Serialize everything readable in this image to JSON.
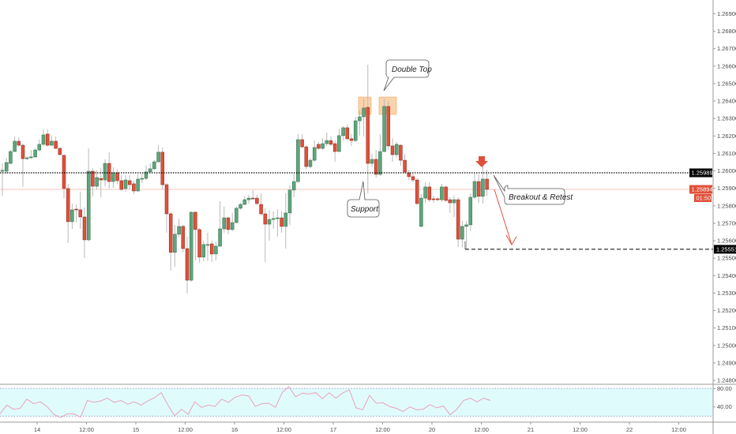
{
  "chart_data": {
    "type": "candlestick",
    "interval": "1h",
    "colors": {
      "up": "#5ea57c",
      "down": "#e0503a",
      "wick": "#b9b9b9",
      "rsi_line": "#e8a3bd",
      "rsi_band_fill": "#e0fbfc",
      "highlight": "#f8c48f"
    },
    "y_axis": {
      "range": [
        1.2478,
        1.27
      ],
      "ticks": [
        "1.26900",
        "1.26800",
        "1.26700",
        "1.26600",
        "1.26500",
        "1.26400",
        "1.26300",
        "1.26200",
        "1.26100",
        "1.26000",
        "1.25900",
        "1.25800",
        "1.25700",
        "1.25600",
        "1.25500",
        "1.25400",
        "1.25300",
        "1.25200",
        "1.25100",
        "1.25000",
        "1.24900",
        "1.24800"
      ]
    },
    "x_axis": {
      "ticks": [
        "14",
        "12:00",
        "15",
        "12:00",
        "16",
        "12:00",
        "17",
        "12:00",
        "20",
        "12:00",
        "21",
        "12:00",
        "22",
        "12:00"
      ]
    },
    "price_labels": {
      "resistance": {
        "value": "1.25989",
        "color": "#000000"
      },
      "last": {
        "value": "1.25894",
        "color": "#e0503a"
      },
      "countdown": "01:50",
      "target": {
        "value": "1.25551",
        "color": "#000000"
      }
    },
    "annotations": {
      "double_top": "Double Top",
      "support": "Support",
      "breakout": "Breakout & Retest"
    },
    "ohlc": [
      [
        1.25998,
        1.26043,
        1.25858,
        1.26003
      ],
      [
        1.25998,
        1.26075,
        1.25985,
        1.26048
      ],
      [
        1.26043,
        1.2612,
        1.26039,
        1.26111
      ],
      [
        1.26111,
        1.26197,
        1.26107,
        1.2617
      ],
      [
        1.2617,
        1.26193,
        1.26138,
        1.26147
      ],
      [
        1.26147,
        1.26156,
        1.25908,
        1.2607
      ],
      [
        1.2607,
        1.26084,
        1.26061,
        1.26075
      ],
      [
        1.26075,
        1.2612,
        1.2607,
        1.2608
      ],
      [
        1.2608,
        1.26129,
        1.26075,
        1.2612
      ],
      [
        1.2612,
        1.26179,
        1.26111,
        1.26152
      ],
      [
        1.26152,
        1.26238,
        1.26143,
        1.26206
      ],
      [
        1.26211,
        1.26238,
        1.26138,
        1.26147
      ],
      [
        1.26147,
        1.26202,
        1.26143,
        1.2617
      ],
      [
        1.2617,
        1.26197,
        1.26125,
        1.26129
      ],
      [
        1.26129,
        1.26134,
        1.26089,
        1.26093
      ],
      [
        1.26089,
        1.26093,
        1.25844,
        1.25899
      ],
      [
        1.25899,
        1.25926,
        1.25587,
        1.25709
      ],
      [
        1.25709,
        1.25813,
        1.25668,
        1.25777
      ],
      [
        1.25781,
        1.25808,
        1.25704,
        1.25779
      ],
      [
        1.25777,
        1.25881,
        1.25668,
        1.25736
      ],
      [
        1.25736,
        1.2579,
        1.25501,
        1.25605
      ],
      [
        1.25605,
        1.26129,
        1.25596,
        1.25998
      ],
      [
        1.25998,
        1.26016,
        1.25854,
        1.25912
      ],
      [
        1.25912,
        1.26003,
        1.25894,
        1.25962
      ],
      [
        1.25957,
        1.26016,
        1.25849,
        1.25948
      ],
      [
        1.25948,
        1.26066,
        1.25912,
        1.26043
      ],
      [
        1.26043,
        1.26107,
        1.25899,
        1.25939
      ],
      [
        1.25939,
        1.26021,
        1.25903,
        1.25989
      ],
      [
        1.25989,
        1.26007,
        1.25926,
        1.25944
      ],
      [
        1.25944,
        1.25976,
        1.25885,
        1.25894
      ],
      [
        1.25899,
        1.25976,
        1.25881,
        1.25948
      ],
      [
        1.25944,
        1.25976,
        1.25894,
        1.25921
      ],
      [
        1.25926,
        1.25944,
        1.25867,
        1.25885
      ],
      [
        1.25885,
        1.2598,
        1.25881,
        1.25953
      ],
      [
        1.25953,
        1.25985,
        1.2593,
        1.25957
      ],
      [
        1.25957,
        1.2603,
        1.25948,
        1.25994
      ],
      [
        1.25994,
        1.26043,
        1.25989,
        1.26012
      ],
      [
        1.26012,
        1.26061,
        1.26003,
        1.26052
      ],
      [
        1.26052,
        1.26147,
        1.26048,
        1.26107
      ],
      [
        1.26107,
        1.26134,
        1.25894,
        1.25921
      ],
      [
        1.25921,
        1.2593,
        1.25646,
        1.25754
      ],
      [
        1.25754,
        1.25763,
        1.25429,
        1.25533
      ],
      [
        1.25533,
        1.25691,
        1.25451,
        1.25637
      ],
      [
        1.25637,
        1.25727,
        1.25623,
        1.25682
      ],
      [
        1.25682,
        1.25691,
        1.25533,
        1.25555
      ],
      [
        1.25555,
        1.25623,
        1.25298,
        1.25374
      ],
      [
        1.25374,
        1.25768,
        1.25365,
        1.25763
      ],
      [
        1.25763,
        1.25768,
        1.25487,
        1.25664
      ],
      [
        1.25664,
        1.25673,
        1.25474,
        1.25506
      ],
      [
        1.25506,
        1.256,
        1.25483,
        1.25578
      ],
      [
        1.25578,
        1.25646,
        1.25483,
        1.25578
      ],
      [
        1.25582,
        1.256,
        1.25478,
        1.25524
      ],
      [
        1.25524,
        1.25596,
        1.25487,
        1.25569
      ],
      [
        1.25569,
        1.25826,
        1.25564,
        1.25668
      ],
      [
        1.25668,
        1.25795,
        1.25646,
        1.25731
      ],
      [
        1.25731,
        1.25736,
        1.25637,
        1.25664
      ],
      [
        1.25664,
        1.25759,
        1.25655,
        1.25704
      ],
      [
        1.25704,
        1.25795,
        1.257,
        1.25786
      ],
      [
        1.25786,
        1.25817,
        1.25777,
        1.25808
      ],
      [
        1.25808,
        1.25854,
        1.25804,
        1.25835
      ],
      [
        1.25835,
        1.25863,
        1.25813,
        1.25844
      ],
      [
        1.25844,
        1.2589,
        1.25835,
        1.25842
      ],
      [
        1.25844,
        1.25863,
        1.25804,
        1.25813
      ],
      [
        1.25808,
        1.25872,
        1.25745,
        1.25754
      ],
      [
        1.25754,
        1.25786,
        1.25478,
        1.25695
      ],
      [
        1.25695,
        1.25777,
        1.256,
        1.25722
      ],
      [
        1.25722,
        1.25768,
        1.25668,
        1.25727
      ],
      [
        1.25727,
        1.25781,
        1.25623,
        1.25731
      ],
      [
        1.25731,
        1.25768,
        1.25646,
        1.25682
      ],
      [
        1.25682,
        1.25872,
        1.25555,
        1.25759
      ],
      [
        1.25759,
        1.25917,
        1.25691,
        1.2589
      ],
      [
        1.2589,
        1.25985,
        1.25849,
        1.25939
      ],
      [
        1.25939,
        1.26211,
        1.2593,
        1.26179
      ],
      [
        1.26179,
        1.26211,
        1.26129,
        1.26138
      ],
      [
        1.26138,
        1.26147,
        1.26007,
        1.26025
      ],
      [
        1.26025,
        1.26075,
        1.26016,
        1.26061
      ],
      [
        1.26061,
        1.26174,
        1.26052,
        1.26134
      ],
      [
        1.26152,
        1.26165,
        1.2612,
        1.26129
      ],
      [
        1.26129,
        1.26188,
        1.2612,
        1.26156
      ],
      [
        1.26156,
        1.2622,
        1.26143,
        1.26174
      ],
      [
        1.26174,
        1.26197,
        1.26143,
        1.26152
      ],
      [
        1.26156,
        1.26174,
        1.26052,
        1.26111
      ],
      [
        1.26111,
        1.26242,
        1.26107,
        1.26202
      ],
      [
        1.26202,
        1.26256,
        1.26174,
        1.26247
      ],
      [
        1.26247,
        1.26265,
        1.26174,
        1.26184
      ],
      [
        1.26184,
        1.26211,
        1.26143,
        1.26174
      ],
      [
        1.26174,
        1.2631,
        1.26165,
        1.26287
      ],
      [
        1.26287,
        1.26346,
        1.26202,
        1.2631
      ],
      [
        1.2631,
        1.26414,
        1.26197,
        1.2636
      ],
      [
        1.26364,
        1.26608,
        1.25872,
        1.26043
      ],
      [
        1.26043,
        1.26098,
        1.26021,
        1.26066
      ],
      [
        1.26066,
        1.2612,
        1.25962,
        1.2598
      ],
      [
        1.2598,
        1.26211,
        1.25971,
        1.26111
      ],
      [
        1.26111,
        1.26414,
        1.26107,
        1.26369
      ],
      [
        1.26369,
        1.264,
        1.2612,
        1.26143
      ],
      [
        1.26143,
        1.26188,
        1.26052,
        1.26093
      ],
      [
        1.26093,
        1.26165,
        1.26075,
        1.26152
      ],
      [
        1.26147,
        1.26152,
        1.2603,
        1.26061
      ],
      [
        1.26061,
        1.26098,
        1.25985,
        1.25994
      ],
      [
        1.25989,
        1.26007,
        1.25948,
        1.25967
      ],
      [
        1.25967,
        1.25985,
        1.25935,
        1.25948
      ],
      [
        1.25948,
        1.25957,
        1.25804,
        1.25813
      ],
      [
        1.25682,
        1.25867,
        1.25677,
        1.25844
      ],
      [
        1.25844,
        1.25935,
        1.25817,
        1.25908
      ],
      [
        1.25908,
        1.25935,
        1.25822,
        1.25835
      ],
      [
        1.2584,
        1.25858,
        1.25817,
        1.25835
      ],
      [
        1.2584,
        1.25849,
        1.25826,
        1.25835
      ],
      [
        1.25835,
        1.25926,
        1.25822,
        1.25908
      ],
      [
        1.25908,
        1.25912,
        1.25822,
        1.25831
      ],
      [
        1.25835,
        1.25849,
        1.25759,
        1.25817
      ],
      [
        1.25817,
        1.25858,
        1.25736,
        1.25835
      ],
      [
        1.25835,
        1.25849,
        1.25564,
        1.25609
      ],
      [
        1.25609,
        1.25713,
        1.25564,
        1.25682
      ],
      [
        1.25682,
        1.25713,
        1.25551,
        1.25691
      ],
      [
        1.25691,
        1.25872,
        1.25655,
        1.25849
      ],
      [
        1.25849,
        1.25985,
        1.2584,
        1.25939
      ],
      [
        1.25939,
        1.2598,
        1.25817,
        1.25854
      ],
      [
        1.25854,
        1.2603,
        1.25813,
        1.25953
      ],
      [
        1.25953,
        1.26007,
        1.25854,
        1.25894
      ]
    ],
    "rsi": {
      "ticks": [
        "80.00",
        "40.00"
      ],
      "bands": [
        20,
        80
      ],
      "values": [
        25,
        44,
        35,
        37,
        57,
        47,
        51,
        41,
        24,
        17,
        25,
        25,
        18,
        54,
        50,
        53,
        59,
        50,
        54,
        46,
        51,
        44,
        53,
        60,
        71,
        44,
        21,
        35,
        24,
        51,
        39,
        44,
        41,
        57,
        50,
        61,
        66,
        64,
        41,
        47,
        48,
        39,
        71,
        84,
        62,
        70,
        68,
        71,
        58,
        71,
        59,
        70,
        77,
        38,
        34,
        65,
        48,
        49,
        41,
        37,
        30,
        40,
        34,
        35,
        45,
        38,
        42,
        23,
        35,
        54,
        59,
        51,
        59,
        54
      ]
    }
  }
}
